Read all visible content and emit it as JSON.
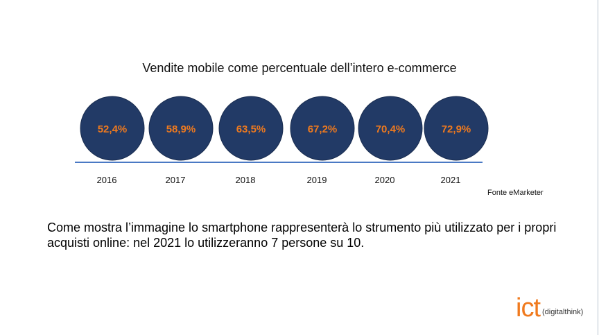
{
  "chart_data": {
    "type": "bubble",
    "title": "Vendite mobile come percentuale dell’intero e-commerce",
    "categories": [
      "2016",
      "2017",
      "2018",
      "2019",
      "2020",
      "2021"
    ],
    "values": [
      52.4,
      58.9,
      63.5,
      67.2,
      70.4,
      72.9
    ],
    "value_labels": [
      "52,4%",
      "58,9%",
      "63,5%",
      "67,2%",
      "70,4%",
      "72,9%"
    ],
    "unit": "%",
    "colors": {
      "bubble": "#223a66",
      "bubble_stroke": "#1a2d50",
      "value_text": "#f07a1e",
      "baseline": "#4a79c4"
    }
  },
  "source": "Fonte eMarketer",
  "caption": "Come mostra l’immagine lo smartphone rappresenterà lo strumento più utilizzato per i propri acquisti online: nel 2021 lo utilizzeranno 7 persone su 10.",
  "logo": {
    "mark": "ict",
    "tagline": "(digitalthink)",
    "color": "#f07a1e"
  }
}
